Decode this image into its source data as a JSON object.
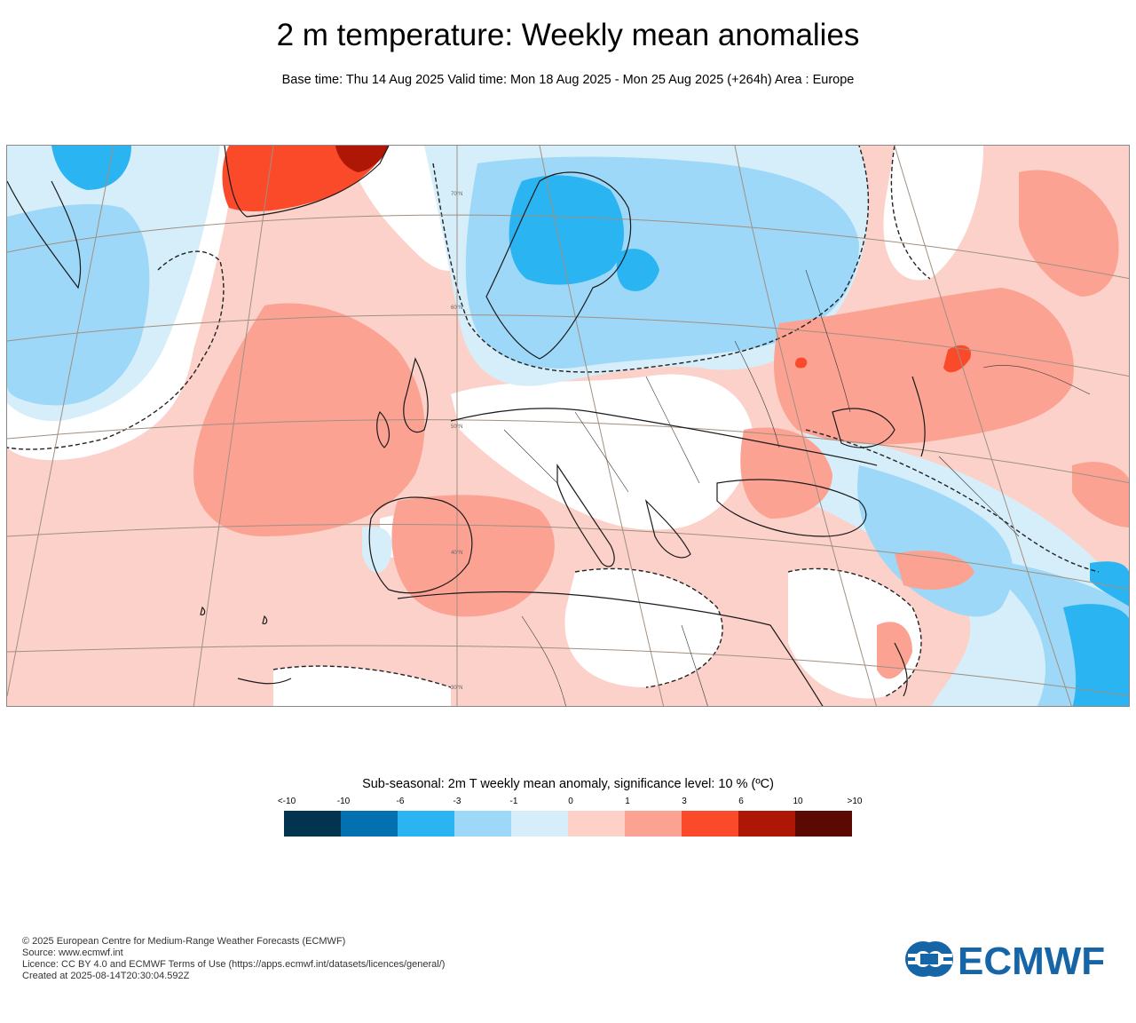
{
  "header": {
    "title": "2 m temperature: Weekly mean anomalies",
    "subtitle": "Base time: Thu 14 Aug 2025 Valid time: Mon 18 Aug 2025 - Mon 25 Aug 2025 (+264h) Area : Europe"
  },
  "map": {
    "graticule_labels": [
      "70°N",
      "60°N",
      "50°N",
      "40°N",
      "30°N"
    ]
  },
  "legend": {
    "title": "Sub-seasonal: 2m T weekly mean anomaly, significance level: 10 % (ºC)",
    "ticks": [
      "<-10",
      "-10",
      "-6",
      "-3",
      "-1",
      "0",
      "1",
      "3",
      "6",
      "10",
      ">10"
    ],
    "colors": [
      "#02334f",
      "#0370b0",
      "#2ab5f2",
      "#9dd8f8",
      "#d6eefa",
      "#fdd0c8",
      "#fca293",
      "#fa4a2a",
      "#ae1605",
      "#5b0902"
    ]
  },
  "footer": {
    "copyright": "© 2025 European Centre for Medium-Range Weather Forecasts (ECMWF)",
    "source": "Source: www.ecmwf.int",
    "licence": "Licence: CC BY 4.0 and ECMWF Terms of Use (https://apps.ecmwf.int/datasets/licences/general/)",
    "created": "Created at 2025-08-14T20:30:04.592Z"
  },
  "logo": {
    "text": "ECMWF",
    "color": "#1565a7"
  }
}
